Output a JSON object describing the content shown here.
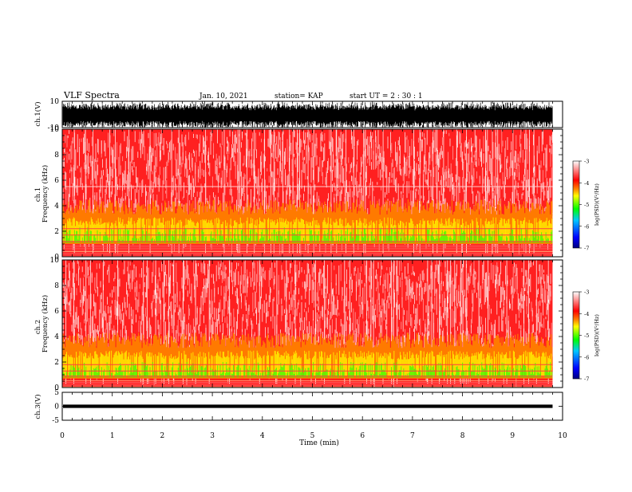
{
  "header": {
    "title": "VLF Spectra",
    "date": "Jan. 10, 2021",
    "station": "station= KAP",
    "start": "start UT =  2 : 30 : 1"
  },
  "chart_data": {
    "type": "heatmap",
    "x_axis": {
      "label": "Time (min)",
      "range": [
        0,
        10
      ],
      "ticks": [
        "0",
        "1",
        "2",
        "3",
        "4",
        "5",
        "6",
        "7",
        "8",
        "9",
        "10"
      ],
      "data_end_min": 9.8
    },
    "panels": [
      {
        "id": "ch1-waveform",
        "type": "line",
        "ylabel": "ch.1(V)",
        "ylim": [
          -10,
          10
        ],
        "yticks": [
          "10",
          "-10"
        ]
      },
      {
        "id": "ch1-spectrogram",
        "type": "heatmap",
        "ylabel_top": "ch.1",
        "ylabel": "Frequency (kHz)",
        "ylim": [
          0,
          10
        ],
        "yticks": [
          "0",
          "2",
          "4",
          "6",
          "8",
          "10"
        ],
        "intense_band_khz": [
          1,
          3
        ],
        "harmonic_lines_khz": [
          1.2,
          1.7,
          2.2,
          5.5
        ],
        "colorbar": {
          "label": "log(PSD)(V²/Hz)",
          "range": [
            -7,
            -3
          ],
          "ticks": [
            "-3",
            "-4",
            "-5",
            "-6",
            "-7"
          ]
        }
      },
      {
        "id": "ch2-spectrogram",
        "type": "heatmap",
        "ylabel_top": "ch.2",
        "ylabel": "Frequency (kHz)",
        "ylim": [
          0,
          10
        ],
        "yticks": [
          "0",
          "2",
          "4",
          "6",
          "8",
          "10"
        ],
        "intense_band_khz": [
          0.7,
          2.8
        ],
        "harmonic_lines_khz": [
          0.9,
          1.3,
          1.8
        ],
        "colorbar": {
          "label": "log(PSD)(V²/Hz)",
          "range": [
            -7,
            -3
          ],
          "ticks": [
            "-3",
            "-4",
            "-5",
            "-6",
            "-7"
          ]
        }
      },
      {
        "id": "ch3-waveform",
        "type": "line",
        "ylabel": "ch.3(V)",
        "ylim": [
          -5,
          5
        ],
        "yticks": [
          "5",
          "0",
          "-5"
        ]
      }
    ]
  },
  "colors": {
    "colormap": [
      "#000080",
      "#0000ff",
      "#00c0ff",
      "#00ff00",
      "#ffff00",
      "#ff8000",
      "#ff0000",
      "#ffffff"
    ],
    "waveform": "#000000"
  }
}
